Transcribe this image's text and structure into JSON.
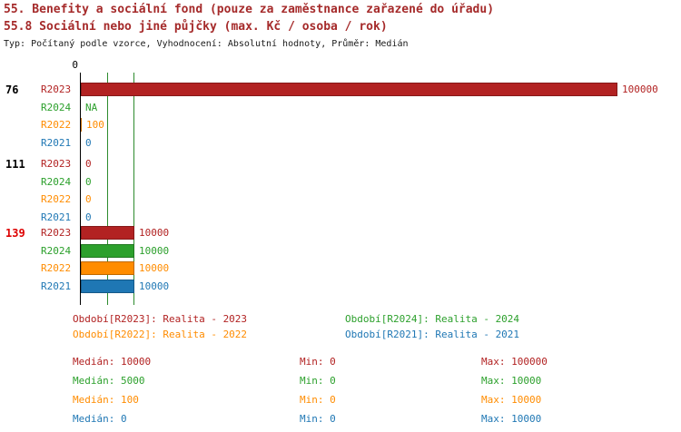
{
  "header": {
    "line1": "55. Benefity a sociální fond (pouze za zaměstnance zařazené do úřadu)",
    "line2": "55.8 Sociální nebo jiné půjčky (max. Kč / osoba / rok)",
    "meta": "Typ: Počítaný podle vzorce, Vyhodnocení: Absolutní hodnoty, Průměr: Medián"
  },
  "chart_data": {
    "type": "bar",
    "orientation": "horizontal",
    "axis_origin_label": "0",
    "xlim": [
      0,
      100000
    ],
    "grid": false,
    "reference_lines": [
      5000,
      10000
    ],
    "reference_line_color": "#2e8b2e",
    "series_order": [
      "R2023",
      "R2024",
      "R2022",
      "R2021"
    ],
    "series_colors": {
      "R2023": "#b22222",
      "R2024": "#2ca02c",
      "R2022": "#ff8c00",
      "R2021": "#1f77b4"
    },
    "groups": [
      {
        "id": "76",
        "id_color": "#000000",
        "rows": [
          {
            "label": "R2023",
            "value": 100000,
            "display": "100000"
          },
          {
            "label": "R2024",
            "value": null,
            "display": "NA"
          },
          {
            "label": "R2022",
            "value": 100,
            "display": "100"
          },
          {
            "label": "R2021",
            "value": 0,
            "display": "0"
          }
        ]
      },
      {
        "id": "111",
        "id_color": "#000000",
        "rows": [
          {
            "label": "R2023",
            "value": 0,
            "display": "0"
          },
          {
            "label": "R2024",
            "value": 0,
            "display": "0"
          },
          {
            "label": "R2022",
            "value": 0,
            "display": "0"
          },
          {
            "label": "R2021",
            "value": 0,
            "display": "0"
          }
        ]
      },
      {
        "id": "139",
        "id_color": "#dd0000",
        "rows": [
          {
            "label": "R2023",
            "value": 10000,
            "display": "10000"
          },
          {
            "label": "R2024",
            "value": 10000,
            "display": "10000"
          },
          {
            "label": "R2022",
            "value": 10000,
            "display": "10000"
          },
          {
            "label": "R2021",
            "value": 10000,
            "display": "10000"
          }
        ]
      }
    ],
    "legend": [
      {
        "label": "Období[R2023]: Realita - 2023",
        "color": "#b22222"
      },
      {
        "label": "Období[R2024]: Realita - 2024",
        "color": "#2ca02c"
      },
      {
        "label": "Období[R2022]: Realita - 2022",
        "color": "#ff8c00"
      },
      {
        "label": "Období[R2021]: Realita - 2021",
        "color": "#1f77b4"
      }
    ],
    "stats": [
      {
        "median": "Medián: 10000",
        "min": "Min: 0",
        "max": "Max: 100000",
        "color": "#b22222"
      },
      {
        "median": "Medián: 5000",
        "min": "Min: 0",
        "max": "Max: 10000",
        "color": "#2ca02c"
      },
      {
        "median": "Medián: 100",
        "min": "Min: 0",
        "max": "Max: 10000",
        "color": "#ff8c00"
      },
      {
        "median": "Medián: 0",
        "min": "Min: 0",
        "max": "Max: 10000",
        "color": "#1f77b4"
      }
    ]
  }
}
